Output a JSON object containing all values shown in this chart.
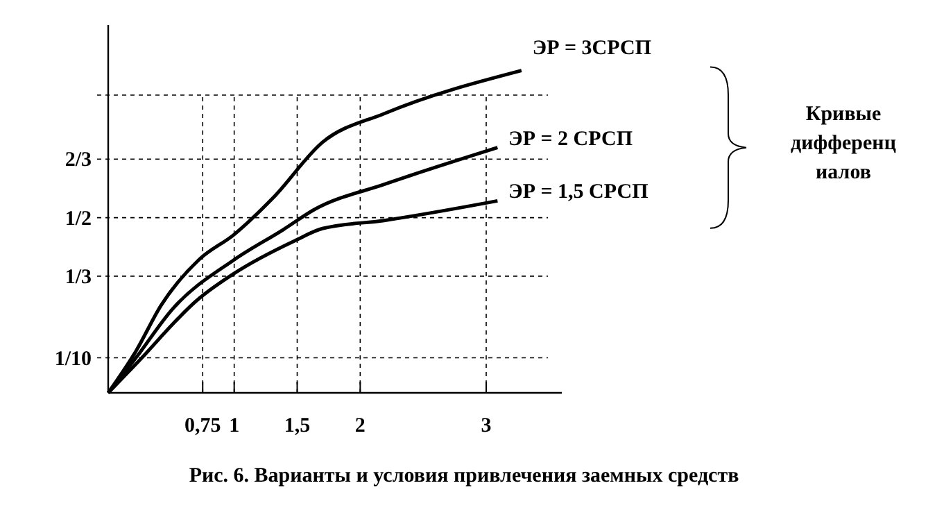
{
  "chart_data": {
    "type": "line",
    "xlim": [
      0,
      3.6
    ],
    "ylim": [
      0,
      1.05
    ],
    "xticks": [
      {
        "value": 0.75,
        "label": "0,75"
      },
      1,
      {
        "value": 1.5,
        "label": "1,5"
      },
      2,
      3
    ],
    "yticks": [
      {
        "value": 0.1,
        "label": "1/10"
      },
      {
        "value": 0.333,
        "label": "1/3"
      },
      {
        "value": 0.5,
        "label": "1/2"
      },
      {
        "value": 0.667,
        "label": "2/3"
      },
      {
        "value": 0.85,
        "label": null
      }
    ],
    "grid": true,
    "line_style": "solid",
    "marker": "none",
    "series": [
      {
        "name": "ЭР = 3СРСП",
        "color": "#000000",
        "x": [
          0,
          0.22,
          0.42,
          0.72,
          1,
          1.31,
          1.7,
          2.19,
          3.28
        ],
        "values": [
          0,
          0.119,
          0.25,
          0.38,
          0.452,
          0.557,
          0.715,
          0.797,
          0.92
        ]
      },
      {
        "name": "ЭР = 2 СРСП",
        "color": "#000000",
        "x": [
          0,
          0.22,
          0.51,
          1,
          1.39,
          1.64,
          2.19,
          3.09
        ],
        "values": [
          0,
          0.1,
          0.239,
          0.38,
          0.466,
          0.524,
          0.595,
          0.7
        ]
      },
      {
        "name": "ЭР = 1,5 СРСП",
        "color": "#000000",
        "x": [
          0,
          0.22,
          0.72,
          1,
          1.48,
          1.7,
          2.19,
          3.09
        ],
        "values": [
          0,
          0.082,
          0.269,
          0.341,
          0.434,
          0.469,
          0.492,
          0.548
        ]
      }
    ],
    "annotations": [
      "Кривые\nдифференц\nиалов",
      "Рис. 6. Варианты и условия привлечения заемных средств"
    ]
  }
}
